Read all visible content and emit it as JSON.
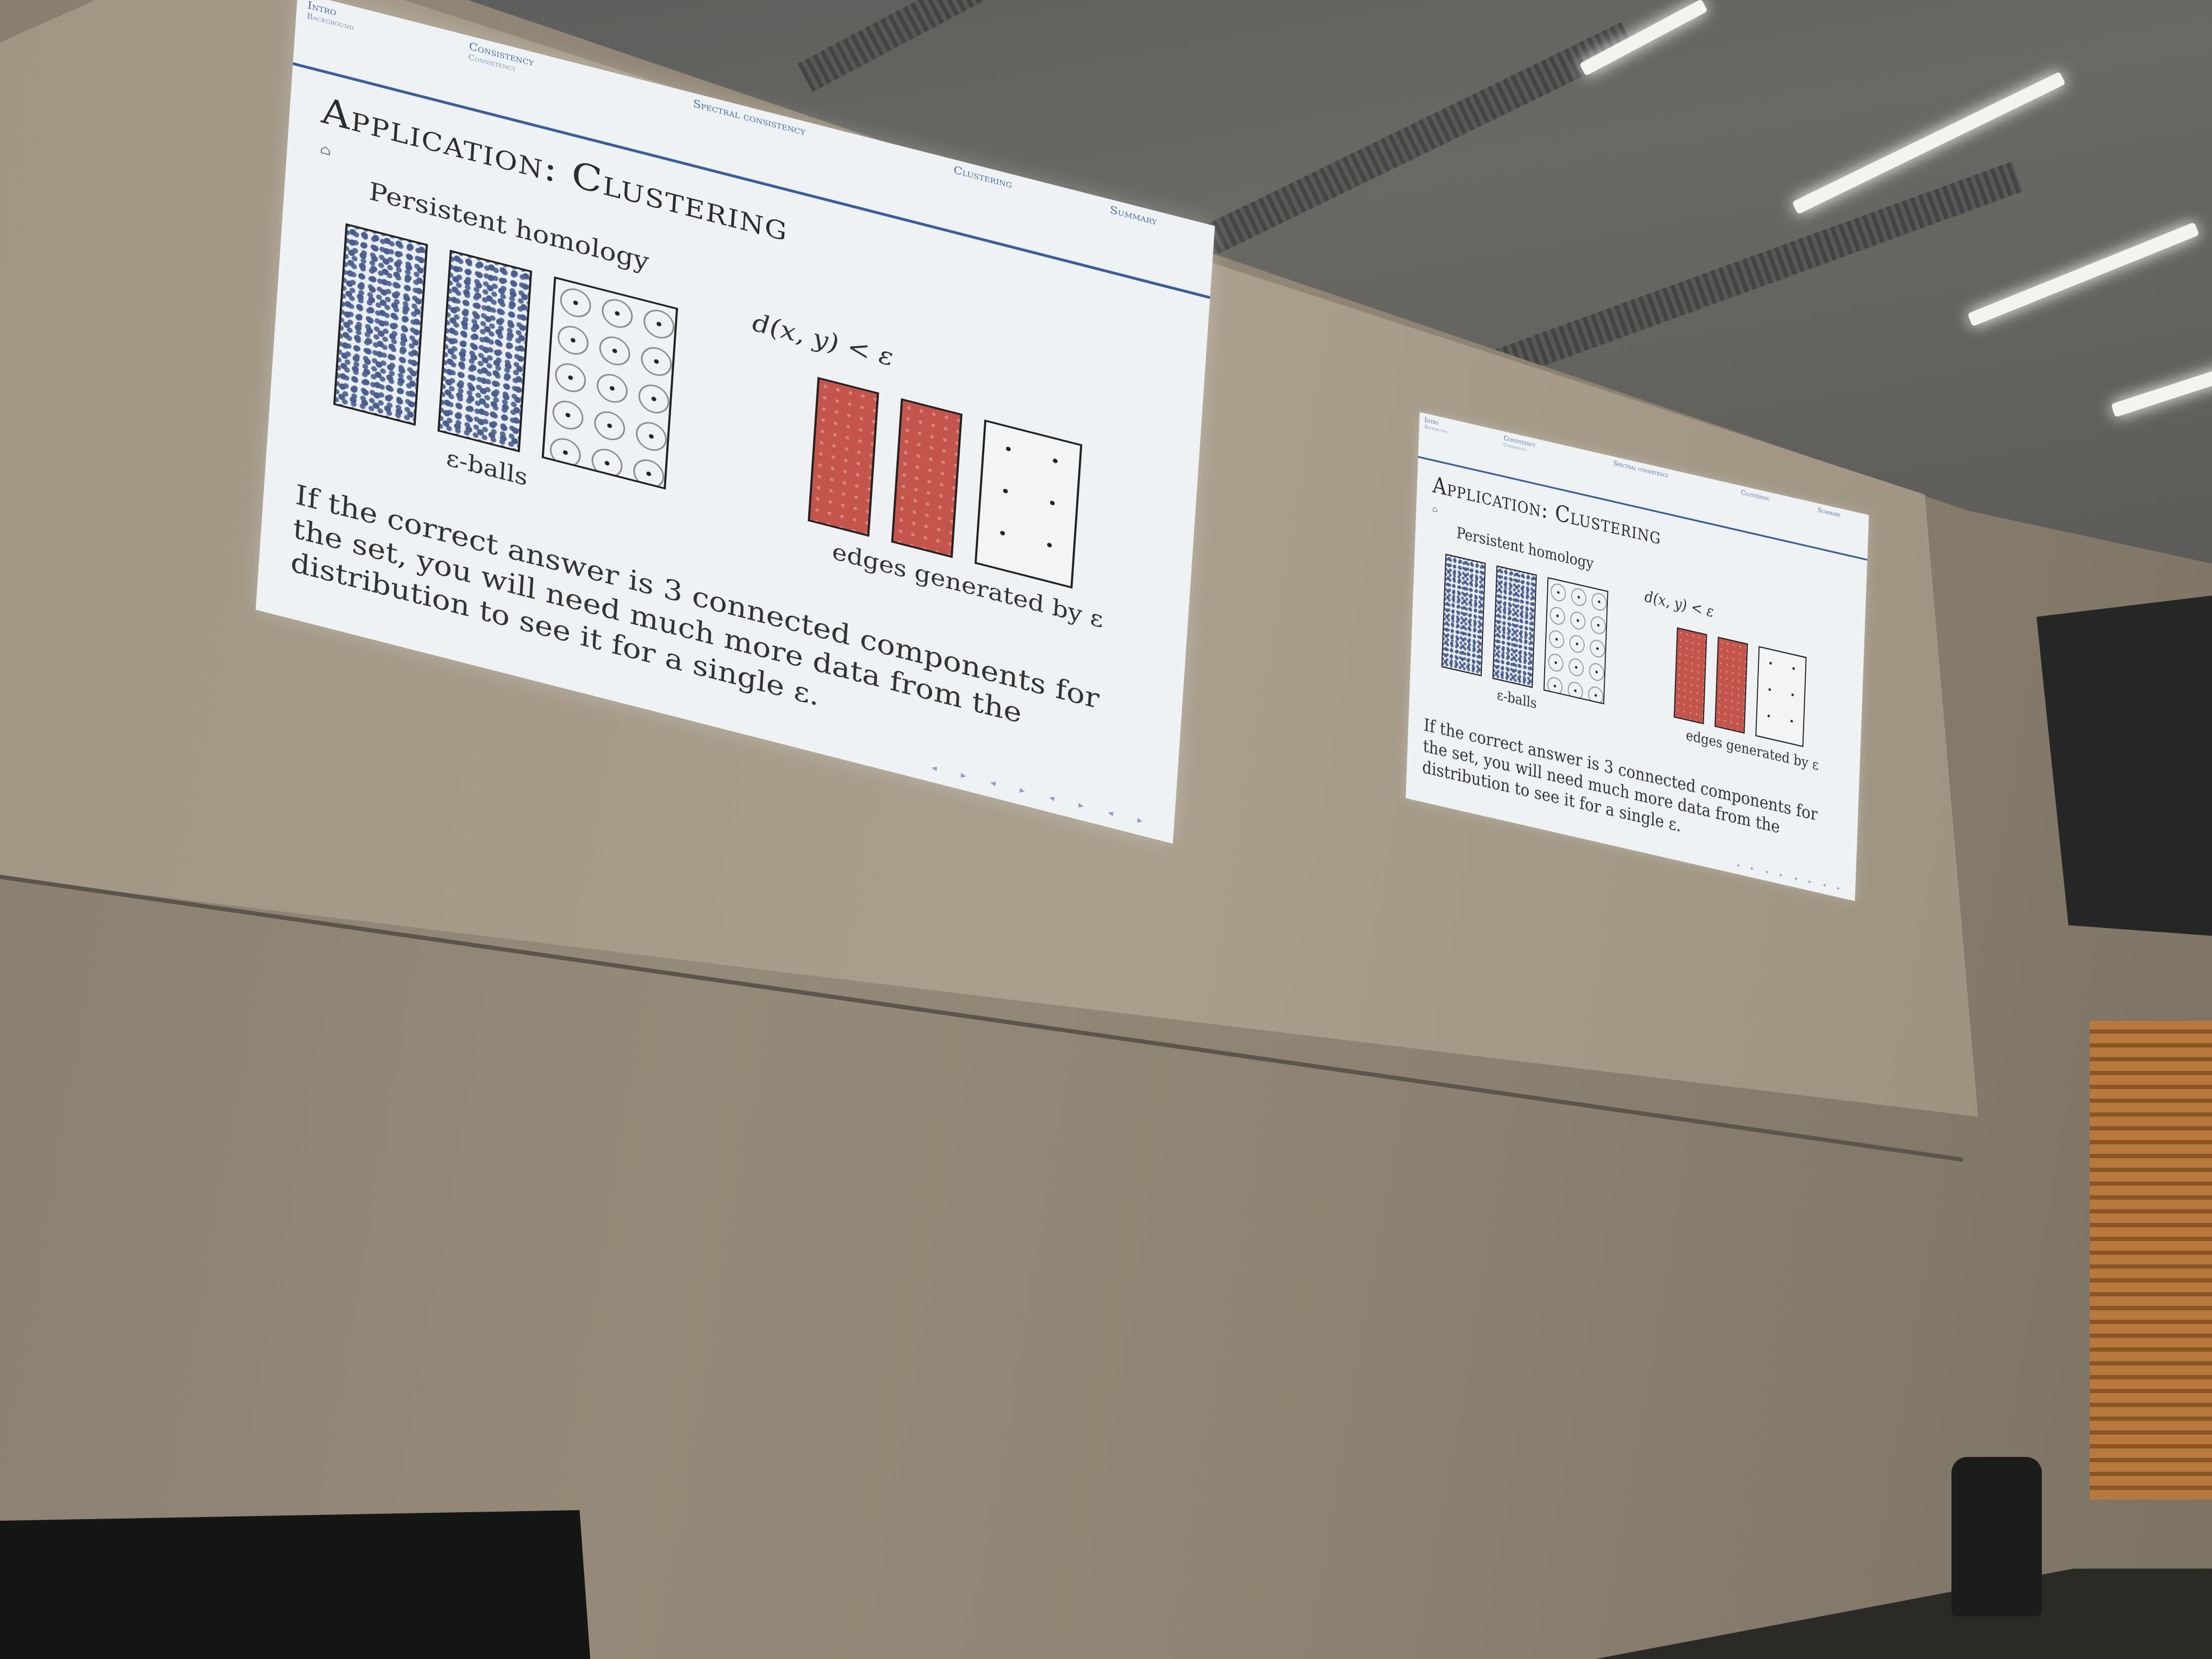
{
  "scene": "lecture-hall",
  "slide": {
    "nav": [
      {
        "label": "Intro",
        "sub": "Background"
      },
      {
        "label": "Consistency",
        "sub": "Consistency"
      },
      {
        "label": "Spectral consistency",
        "sub": ""
      },
      {
        "label": "Clustering",
        "sub": ""
      },
      {
        "label": "Summary",
        "sub": ""
      }
    ],
    "title": "Application: Clustering",
    "subtitle": "Persistent homology",
    "formula": "d(x, y) < ε",
    "balls_caption": "ε-balls",
    "edges_caption": "edges generated by ε",
    "body": "If the correct answer is 3 connected components for the set, you will need much more data from the distribution to see it for a single ε.",
    "footer_nav": "◂ ▸ ◂ ▸ ◂ ▸ ◂ ▸"
  },
  "colors": {
    "blue_points": "#4b5e8e",
    "red_fill": "#c4554d",
    "nav_blue": "#3b5d9a"
  }
}
